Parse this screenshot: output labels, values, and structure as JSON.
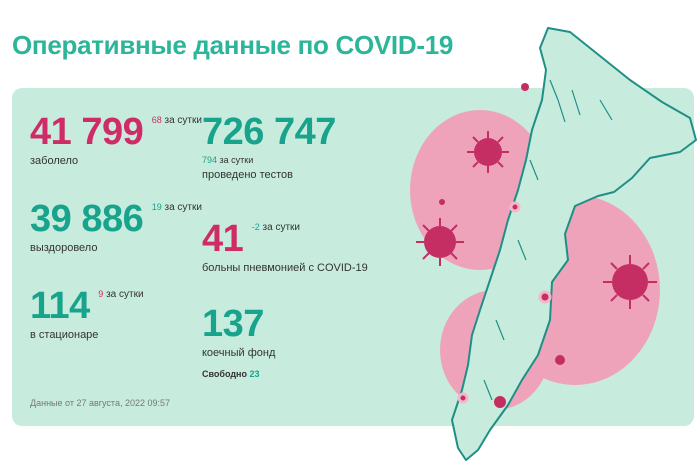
{
  "title": "Оперативные данные по COVID-19",
  "stats": {
    "infected": {
      "value": "41 799",
      "delta": "68",
      "delta_label": "за сутки",
      "label": "заболело"
    },
    "recovered": {
      "value": "39 886",
      "delta": "19",
      "delta_label": "за сутки",
      "label": "выздоровело"
    },
    "hospital": {
      "value": "114",
      "delta": "9",
      "delta_label": "за сутки",
      "label": "в стационаре"
    },
    "tests": {
      "value": "726 747",
      "delta": "794",
      "delta_label": "за сутки",
      "label": "проведено тестов"
    },
    "pneumonia": {
      "value": "41",
      "delta": "-2",
      "delta_label": "за сутки",
      "label": "больны пневмонией с COVID-19"
    },
    "beds": {
      "value": "137",
      "label": "коечный фонд",
      "free_label": "Свободно",
      "free_value": "23"
    }
  },
  "updated": "Данные от 27 августа, 2022 09:57",
  "colors": {
    "accent_red": "#cf2b66",
    "accent_teal": "#17a38c",
    "title": "#2db59a",
    "card_bg": "#c7ecdd"
  },
  "illustration": {
    "icons": [
      "kamchatka-map",
      "virus-icon"
    ]
  }
}
